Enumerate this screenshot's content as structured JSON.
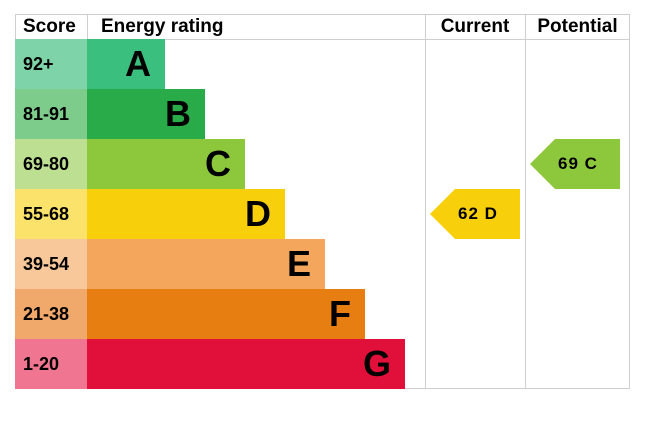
{
  "headers": {
    "score": "Score",
    "energy_rating": "Energy rating",
    "current": "Current",
    "potential": "Potential"
  },
  "chart_data": {
    "type": "bar",
    "bands": [
      {
        "score": "92+",
        "letter": "A",
        "color": "#3bbf7f",
        "score_bg": "#7fd3a8"
      },
      {
        "score": "81-91",
        "letter": "B",
        "color": "#2aab4a",
        "score_bg": "#7dcc8c"
      },
      {
        "score": "69-80",
        "letter": "C",
        "color": "#8dc83c",
        "score_bg": "#bddf92"
      },
      {
        "score": "55-68",
        "letter": "D",
        "color": "#f7d00b",
        "score_bg": "#fbe26a"
      },
      {
        "score": "39-54",
        "letter": "E",
        "color": "#f3a65c",
        "score_bg": "#f8c79a"
      },
      {
        "score": "21-38",
        "letter": "F",
        "color": "#e67e12",
        "score_bg": "#f0a96a"
      },
      {
        "score": "1-20",
        "letter": "G",
        "color": "#e0103a",
        "score_bg": "#ef7590"
      }
    ],
    "current": {
      "value": 62,
      "letter": "D",
      "label": "62  D",
      "color": "#f7d00b"
    },
    "potential": {
      "value": 69,
      "letter": "C",
      "label": "69  C",
      "color": "#8dc83c"
    }
  }
}
